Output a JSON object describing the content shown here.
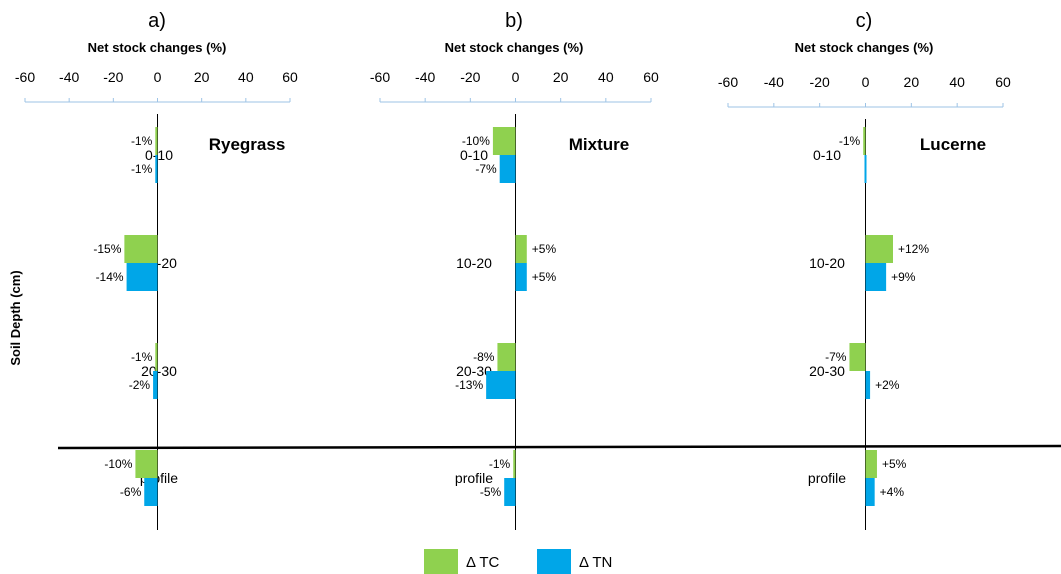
{
  "colors": {
    "tc": "#8fd14f",
    "tn": "#00a6e8",
    "axis": "#9dc3e6"
  },
  "y_axis_label": "Soil Depth (cm)",
  "legend": [
    {
      "key": "tc",
      "label": "Δ TC"
    },
    {
      "key": "tn",
      "label": "Δ TN"
    }
  ],
  "chart_data": [
    {
      "type": "bar",
      "panel_label": "a)",
      "plant": "Ryegrass",
      "xlabel": "Net stock changes (%)",
      "ylabel": "Soil Depth (cm)",
      "xlim": [
        -60,
        60
      ],
      "xticks": [
        "-60",
        "-40",
        "-20",
        "0",
        "20",
        "40",
        "60"
      ],
      "categories": [
        "0-10",
        "10-20",
        "20-30",
        "profile"
      ],
      "series": [
        {
          "name": "Δ TC",
          "values": [
            -1,
            -15,
            -1,
            -10
          ],
          "labels": [
            "-1%",
            "-15%",
            "-1%",
            "-10%"
          ]
        },
        {
          "name": "Δ TN",
          "values": [
            -1,
            -14,
            -2,
            -6
          ],
          "labels": [
            "-1%",
            "-14%",
            "-2%",
            "-6%"
          ]
        }
      ]
    },
    {
      "type": "bar",
      "panel_label": "b)",
      "plant": "Mixture",
      "xlabel": "Net stock changes (%)",
      "ylabel": "",
      "xlim": [
        -60,
        60
      ],
      "xticks": [
        "-60",
        "-40",
        "-20",
        "0",
        "20",
        "40",
        "60"
      ],
      "categories": [
        "0-10",
        "10-20",
        "20-30",
        "profile"
      ],
      "series": [
        {
          "name": "Δ TC",
          "values": [
            -10,
            5,
            -8,
            -1
          ],
          "labels": [
            "-10%",
            "+5%",
            "-8%",
            "-1%"
          ]
        },
        {
          "name": "Δ TN",
          "values": [
            -7,
            5,
            -13,
            -5
          ],
          "labels": [
            "-7%",
            "+5%",
            "-13%",
            "-5%"
          ]
        }
      ]
    },
    {
      "type": "bar",
      "panel_label": "c)",
      "plant": "Lucerne",
      "xlabel": "Net stock changes (%)",
      "ylabel": "",
      "xlim": [
        -60,
        60
      ],
      "xticks": [
        "-60",
        "-40",
        "-20",
        "0",
        "20",
        "40",
        "60"
      ],
      "categories": [
        "0-10",
        "10-20",
        "20-30",
        "profile"
      ],
      "series": [
        {
          "name": "Δ TC",
          "values": [
            -1,
            12,
            -7,
            5
          ],
          "labels": [
            "-1%",
            "+12%",
            "-7%",
            "+5%"
          ]
        },
        {
          "name": "Δ TN",
          "values": [
            0,
            9,
            2,
            4
          ],
          "labels": [
            "",
            "+9%",
            "+2%",
            "+4%"
          ]
        }
      ]
    }
  ]
}
